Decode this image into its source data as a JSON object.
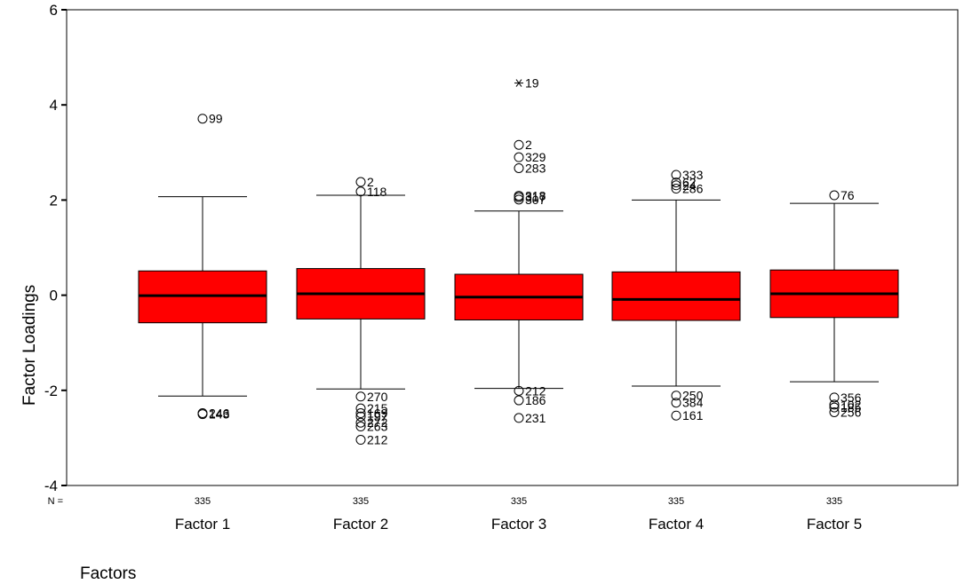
{
  "chart_data": {
    "type": "boxplot",
    "title": "",
    "xlabel": "Factors",
    "ylabel": "Factor Loadings",
    "ylim": [
      -4,
      6
    ],
    "yticks": [
      -4,
      -2,
      0,
      2,
      4,
      6
    ],
    "n_label": "N =",
    "grid": false,
    "colors": {
      "box_fill": "#ff0000",
      "median": "#000000",
      "axis": "#000000"
    },
    "categories": [
      "Factor 1",
      "Factor 2",
      "Factor 3",
      "Factor 4",
      "Factor 5"
    ],
    "boxes": [
      {
        "name": "Factor 1",
        "n": "335",
        "q1": -0.58,
        "median": -0.01,
        "q3": 0.51,
        "whisker_low": -2.12,
        "whisker_high": 2.07,
        "outliers": [
          {
            "value": 3.71,
            "label": "99",
            "marker": "circle"
          },
          {
            "value": -2.48,
            "label": "246",
            "marker": "circle"
          },
          {
            "value": -2.5,
            "label": "143",
            "marker": "circle"
          }
        ]
      },
      {
        "name": "Factor 2",
        "n": "335",
        "q1": -0.5,
        "median": 0.03,
        "q3": 0.56,
        "whisker_low": -1.97,
        "whisker_high": 2.1,
        "outliers": [
          {
            "value": 2.38,
            "label": "2",
            "marker": "circle"
          },
          {
            "value": 2.18,
            "label": "118",
            "marker": "circle"
          },
          {
            "value": -2.13,
            "label": "270",
            "marker": "circle"
          },
          {
            "value": -2.38,
            "label": "215",
            "marker": "circle"
          },
          {
            "value": -2.48,
            "label": "169",
            "marker": "circle"
          },
          {
            "value": -2.55,
            "label": "197",
            "marker": "circle"
          },
          {
            "value": -2.68,
            "label": "272",
            "marker": "circle"
          },
          {
            "value": -2.76,
            "label": "263",
            "marker": "circle"
          },
          {
            "value": -3.04,
            "label": "212",
            "marker": "circle"
          }
        ]
      },
      {
        "name": "Factor 3",
        "n": "335",
        "q1": -0.52,
        "median": -0.04,
        "q3": 0.44,
        "whisker_low": -1.96,
        "whisker_high": 1.77,
        "outliers": [
          {
            "value": 4.46,
            "label": "19",
            "marker": "asterisk"
          },
          {
            "value": 3.16,
            "label": "2",
            "marker": "circle"
          },
          {
            "value": 2.9,
            "label": "329",
            "marker": "circle"
          },
          {
            "value": 2.67,
            "label": "283",
            "marker": "circle"
          },
          {
            "value": 2.09,
            "label": "318",
            "marker": "circle"
          },
          {
            "value": 2.06,
            "label": "317",
            "marker": "circle"
          },
          {
            "value": 2.01,
            "label": "307",
            "marker": "circle"
          },
          {
            "value": -2.01,
            "label": "212",
            "marker": "circle"
          },
          {
            "value": -2.21,
            "label": "186",
            "marker": "circle"
          },
          {
            "value": -2.58,
            "label": "231",
            "marker": "circle"
          }
        ]
      },
      {
        "name": "Factor 4",
        "n": "335",
        "q1": -0.53,
        "median": -0.09,
        "q3": 0.49,
        "whisker_low": -1.91,
        "whisker_high": 2.0,
        "outliers": [
          {
            "value": 2.53,
            "label": "333",
            "marker": "circle"
          },
          {
            "value": 2.37,
            "label": "62",
            "marker": "circle"
          },
          {
            "value": 2.31,
            "label": "24",
            "marker": "circle"
          },
          {
            "value": 2.24,
            "label": "286",
            "marker": "circle"
          },
          {
            "value": -2.11,
            "label": "250",
            "marker": "circle"
          },
          {
            "value": -2.26,
            "label": "384",
            "marker": "circle"
          },
          {
            "value": -2.53,
            "label": "161",
            "marker": "circle"
          }
        ]
      },
      {
        "name": "Factor 5",
        "n": "335",
        "q1": -0.47,
        "median": 0.03,
        "q3": 0.53,
        "whisker_low": -1.82,
        "whisker_high": 1.93,
        "outliers": [
          {
            "value": 2.1,
            "label": "76",
            "marker": "circle"
          },
          {
            "value": -2.15,
            "label": "356",
            "marker": "circle"
          },
          {
            "value": -2.3,
            "label": "102",
            "marker": "circle"
          },
          {
            "value": -2.36,
            "label": "185",
            "marker": "circle"
          },
          {
            "value": -2.46,
            "label": "256",
            "marker": "circle"
          }
        ]
      }
    ]
  }
}
